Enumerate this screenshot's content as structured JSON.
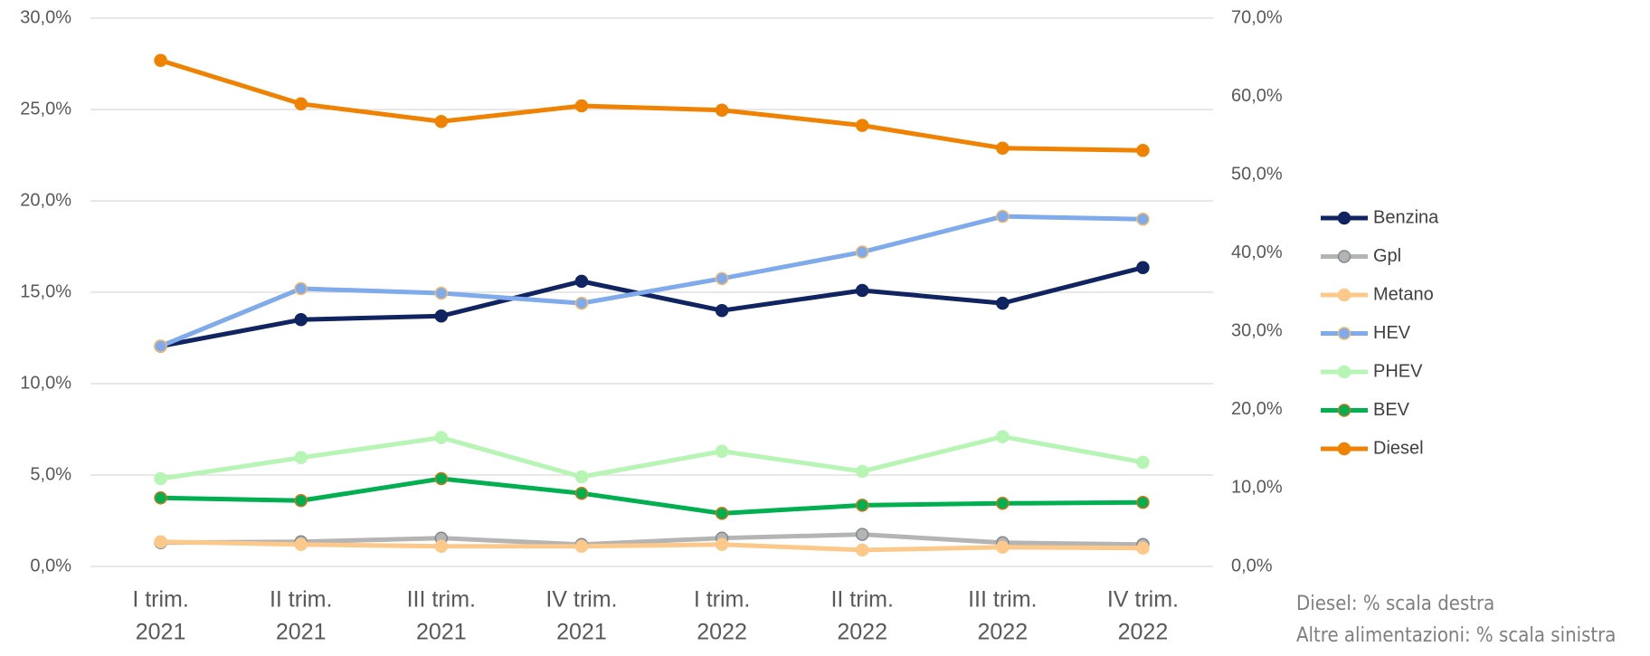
{
  "chart_data": {
    "type": "line",
    "categories": [
      [
        "I trim.",
        "2021"
      ],
      [
        "II trim.",
        "2021"
      ],
      [
        "III trim.",
        "2021"
      ],
      [
        "IV trim.",
        "2021"
      ],
      [
        "I trim.",
        "2022"
      ],
      [
        "II trim.",
        "2022"
      ],
      [
        "III trim.",
        "2022"
      ],
      [
        "IV trim.",
        "2022"
      ]
    ],
    "series": [
      {
        "name": "Benzina",
        "color": "#0f2460",
        "marker_edge": "#0f2460",
        "values": [
          12.05,
          13.5,
          13.7,
          15.6,
          14.0,
          15.1,
          14.4,
          16.35
        ]
      },
      {
        "name": "Gpl",
        "color": "#b4b4b4",
        "marker_edge": "#7f8a8f",
        "values": [
          1.3,
          1.35,
          1.55,
          1.2,
          1.55,
          1.75,
          1.3,
          1.2
        ]
      },
      {
        "name": "Metano",
        "color": "#fdc98a",
        "marker_edge": "#fdc98a",
        "values": [
          1.35,
          1.2,
          1.1,
          1.1,
          1.2,
          0.9,
          1.05,
          1.0
        ]
      },
      {
        "name": "HEV",
        "color": "#7faaeb",
        "marker_edge": "#f2b96b",
        "values": [
          12.05,
          15.2,
          14.95,
          14.4,
          15.75,
          17.2,
          19.15,
          19.0
        ]
      },
      {
        "name": "PHEV",
        "color": "#b6f5b4",
        "marker_edge": "#b6f5b4",
        "values": [
          4.8,
          5.95,
          7.05,
          4.9,
          6.3,
          5.2,
          7.1,
          5.7
        ]
      },
      {
        "name": "BEV",
        "color": "#00b050",
        "marker_edge": "#c9761a",
        "values": [
          3.75,
          3.6,
          4.8,
          4.0,
          2.9,
          3.35,
          3.45,
          3.5
        ]
      },
      {
        "name": "Diesel",
        "color": "#ef8200",
        "marker_edge": "#ef8200",
        "axis": "y2",
        "values": [
          64.6,
          59.05,
          56.8,
          58.8,
          58.25,
          56.3,
          53.4,
          53.1
        ]
      }
    ],
    "ylim": [
      0,
      30
    ],
    "yticks": [
      {
        "value": 0,
        "label": "0,0%"
      },
      {
        "value": 5,
        "label": "5,0%"
      },
      {
        "value": 10,
        "label": "10,0%"
      },
      {
        "value": 15,
        "label": "15,0%"
      },
      {
        "value": 20,
        "label": "20,0%"
      },
      {
        "value": 25,
        "label": "25,0%"
      },
      {
        "value": 30,
        "label": "30,0%"
      }
    ],
    "y2lim": [
      0,
      70
    ],
    "y2ticks": [
      {
        "value": 0,
        "label": "0,0%"
      },
      {
        "value": 10,
        "label": "10,0%"
      },
      {
        "value": 20,
        "label": "20,0%"
      },
      {
        "value": 30,
        "label": "30,0%"
      },
      {
        "value": 40,
        "label": "40,0%"
      },
      {
        "value": 50,
        "label": "50,0%"
      },
      {
        "value": 60,
        "label": "60,0%"
      },
      {
        "value": 70,
        "label": "70,0%"
      }
    ],
    "grid": true,
    "legend": "right",
    "annotations": [
      "Diesel: % scala destra",
      "Altre alimentazioni: % scala sinistra"
    ]
  }
}
